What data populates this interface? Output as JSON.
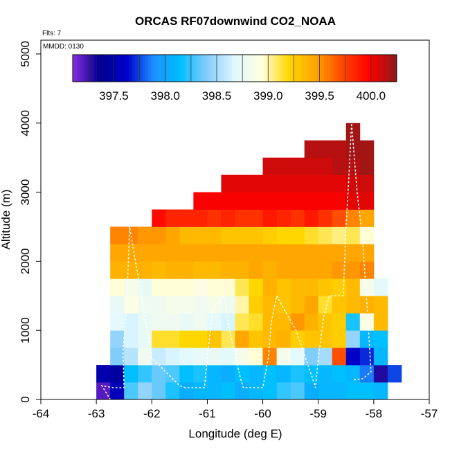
{
  "chart_data": {
    "type": "heatmap",
    "title": "ORCAS RF07downwind CO2_NOAA",
    "annotations": {
      "flights": "Flts: 7",
      "date": "MMDD: 0130"
    },
    "xlabel": "Longitude (deg E)",
    "ylabel": "Altitude (m)",
    "xlim": [
      -64,
      -57
    ],
    "ylim": [
      0,
      5200
    ],
    "xticks": [
      -64,
      -63,
      -62,
      -61,
      -60,
      -59,
      -58,
      -57
    ],
    "xtick_labels": [
      "-64",
      "-63",
      "-62",
      "-61",
      "-60",
      "-59",
      "-58",
      "-57"
    ],
    "yticks": [
      0,
      1000,
      2000,
      3000,
      4000,
      5000
    ],
    "ytick_labels": [
      "0",
      "1000",
      "2000",
      "3000",
      "4000",
      "5000"
    ],
    "colorbar": {
      "min": 397.1,
      "max": 400.25,
      "ticks": [
        397.5,
        398.0,
        398.5,
        399.0,
        399.5,
        400.0
      ],
      "tick_labels": [
        "397.5",
        "398.0",
        "398.5",
        "399.0",
        "399.5",
        "400.0"
      ],
      "colors": [
        "#8a2be2",
        "#00008b",
        "#0000cd",
        "#1e90ff",
        "#00bfff",
        "#87cefa",
        "#e0f8ff",
        "#ffffe0",
        "#ffd700",
        "#ffa500",
        "#ff4500",
        "#ff0000",
        "#8b1a1a"
      ]
    },
    "cell_width_deg": 0.25,
    "cell_height_m": 250,
    "rows": [
      {
        "alt": [
          0,
          250
        ],
        "lon_start": -63.0,
        "values": [
          397.2,
          397.55,
          398.3,
          398.45,
          398.35,
          398.2,
          398.05,
          398.1,
          398.1,
          398.15,
          398.05,
          398.1,
          398.15,
          398.25,
          398.3,
          398.05,
          398.1,
          398.1,
          398.15,
          398.15,
          398.1
        ]
      },
      {
        "alt": [
          250,
          500
        ],
        "lon_start": -63.0,
        "values": [
          397.5,
          397.45,
          398.15,
          398.25,
          398.35,
          398.3,
          398.15,
          398.2,
          398.1,
          398.05,
          398.15,
          398.1,
          398.15,
          398.1,
          398.2,
          398.15,
          398.1,
          398.15,
          398.1,
          397.85,
          397.3,
          397.75
        ]
      },
      {
        "alt": [
          500,
          750
        ],
        "lon_start": -62.75,
        "values": [
          398.4,
          398.55,
          398.8,
          398.6,
          398.65,
          398.7,
          398.75,
          398.75,
          398.7,
          398.85,
          398.95,
          399.55,
          398.85,
          398.7,
          398.4,
          398.5,
          399.7,
          397.6,
          397.7,
          398.1
        ]
      },
      {
        "alt": [
          750,
          1000
        ],
        "lon_start": -62.75,
        "values": [
          398.45,
          398.65,
          398.75,
          399.15,
          399.15,
          399.2,
          399.2,
          399.3,
          399.1,
          399.45,
          399.3,
          399.35,
          399.4,
          399.25,
          399.3,
          399.3,
          399.25,
          398.45,
          398.1,
          398.15
        ]
      },
      {
        "alt": [
          1000,
          1250
        ],
        "lon_start": -62.75,
        "values": [
          398.7,
          398.65,
          398.75,
          398.8,
          398.8,
          398.75,
          398.8,
          398.7,
          398.65,
          399.1,
          399.15,
          399.35,
          399.35,
          399.5,
          399.4,
          399.3,
          399.25,
          398.2,
          398.9,
          399.35
        ]
      },
      {
        "alt": [
          1250,
          1500
        ],
        "lon_start": -62.75,
        "values": [
          398.75,
          398.9,
          398.8,
          398.8,
          398.85,
          398.85,
          398.8,
          398.85,
          398.8,
          399.0,
          399.25,
          399.35,
          399.3,
          399.35,
          399.45,
          399.15,
          399.3,
          399.35,
          399.4,
          399.35
        ]
      },
      {
        "alt": [
          1500,
          1750
        ],
        "lon_start": -62.75,
        "values": [
          398.95,
          398.85,
          398.75,
          398.95,
          398.95,
          398.95,
          398.9,
          398.95,
          398.95,
          399.1,
          399.2,
          399.4,
          399.3,
          399.35,
          399.35,
          399.3,
          399.25,
          399.35,
          398.85,
          398.7
        ]
      },
      {
        "alt": [
          1750,
          2000
        ],
        "lon_start": -62.75,
        "values": [
          399.4,
          399.4,
          399.4,
          399.35,
          399.4,
          399.4,
          399.35,
          399.35,
          399.4,
          399.4,
          399.45,
          399.4,
          399.45,
          399.45,
          399.45,
          399.45,
          399.5,
          399.5,
          399.55
        ]
      },
      {
        "alt": [
          2000,
          2250
        ],
        "lon_start": -62.75,
        "values": [
          399.45,
          399.45,
          399.45,
          399.45,
          399.45,
          399.45,
          399.45,
          399.45,
          399.45,
          399.45,
          399.45,
          399.45,
          399.45,
          399.45,
          399.45,
          399.45,
          399.45,
          399.45,
          399.45
        ]
      },
      {
        "alt": [
          2250,
          2500
        ],
        "lon_start": -62.75,
        "values": [
          399.55,
          399.55,
          399.5,
          399.5,
          399.45,
          399.35,
          399.35,
          399.35,
          399.3,
          399.3,
          399.3,
          399.25,
          399.2,
          399.2,
          399.15,
          399.1,
          399.05,
          399.1,
          398.95
        ]
      },
      {
        "alt": [
          2500,
          2750
        ],
        "lon_start": -62.0,
        "values": [
          399.95,
          399.85,
          399.85,
          399.85,
          399.8,
          399.85,
          399.8,
          399.8,
          399.9,
          399.85,
          399.8,
          399.9,
          399.8,
          399.7,
          399.55,
          399.45
        ]
      },
      {
        "alt": [
          2750,
          3000
        ],
        "lon_start": -61.25,
        "values": [
          400.0,
          400.0,
          400.0,
          400.0,
          400.0,
          400.0,
          400.0,
          400.0,
          400.0,
          400.0,
          400.0,
          400.05,
          400.05
        ]
      },
      {
        "alt": [
          3000,
          3250
        ],
        "lon_start": -60.75,
        "values": [
          400.05,
          400.05,
          400.05,
          400.05,
          400.05,
          400.05,
          400.05,
          400.05,
          400.05,
          400.1,
          400.1
        ]
      },
      {
        "alt": [
          3250,
          3500
        ],
        "lon_start": -60.0,
        "values": [
          400.1,
          400.1,
          400.1,
          400.1,
          400.1,
          400.15,
          400.15,
          400.2
        ]
      },
      {
        "alt": [
          3500,
          3750
        ],
        "lon_start": -59.25,
        "values": [
          400.15,
          400.15,
          400.15,
          400.2,
          400.2
        ]
      },
      {
        "alt": [
          3750,
          4000
        ],
        "lon_start": -58.5,
        "values": [
          400.2
        ]
      }
    ],
    "flight_track": [
      [
        -62.75,
        0
      ],
      [
        -62.9,
        200
      ],
      [
        -62.7,
        170
      ],
      [
        -62.5,
        170
      ],
      [
        -62.52,
        700
      ],
      [
        -62.45,
        1400
      ],
      [
        -62.4,
        2500
      ],
      [
        -62.0,
        600
      ],
      [
        -61.5,
        200
      ],
      [
        -61.4,
        170
      ],
      [
        -61.05,
        170
      ],
      [
        -61.0,
        600
      ],
      [
        -60.9,
        1300
      ],
      [
        -60.7,
        1500
      ],
      [
        -60.6,
        1000
      ],
      [
        -60.4,
        300
      ],
      [
        -60.35,
        170
      ],
      [
        -60.0,
        170
      ],
      [
        -59.9,
        600
      ],
      [
        -59.85,
        1100
      ],
      [
        -59.75,
        1500
      ],
      [
        -59.4,
        1000
      ],
      [
        -59.1,
        300
      ],
      [
        -59.05,
        170
      ],
      [
        -59.0,
        600
      ],
      [
        -58.9,
        1200
      ],
      [
        -58.8,
        1500
      ],
      [
        -58.55,
        1500
      ],
      [
        -58.5,
        2500
      ],
      [
        -58.45,
        3200
      ],
      [
        -58.4,
        4000
      ],
      [
        -58.3,
        3000
      ],
      [
        -58.2,
        2300
      ],
      [
        -58.1,
        1100
      ],
      [
        -58.05,
        400
      ],
      [
        -58.2,
        300
      ],
      [
        -58.4,
        280
      ]
    ]
  }
}
